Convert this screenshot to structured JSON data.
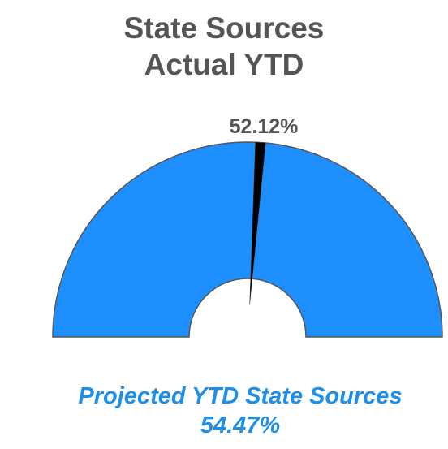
{
  "chart_data": {
    "type": "gauge",
    "title": "State Sources\nActual YTD",
    "values": [
      52.12
    ],
    "value_labels": [
      "52.12%"
    ],
    "ylim": [
      0,
      100
    ],
    "color": "#1e8fff",
    "needle_color": "#000000",
    "annotations": [
      "Projected YTD State Sources",
      "54.47%"
    ]
  }
}
